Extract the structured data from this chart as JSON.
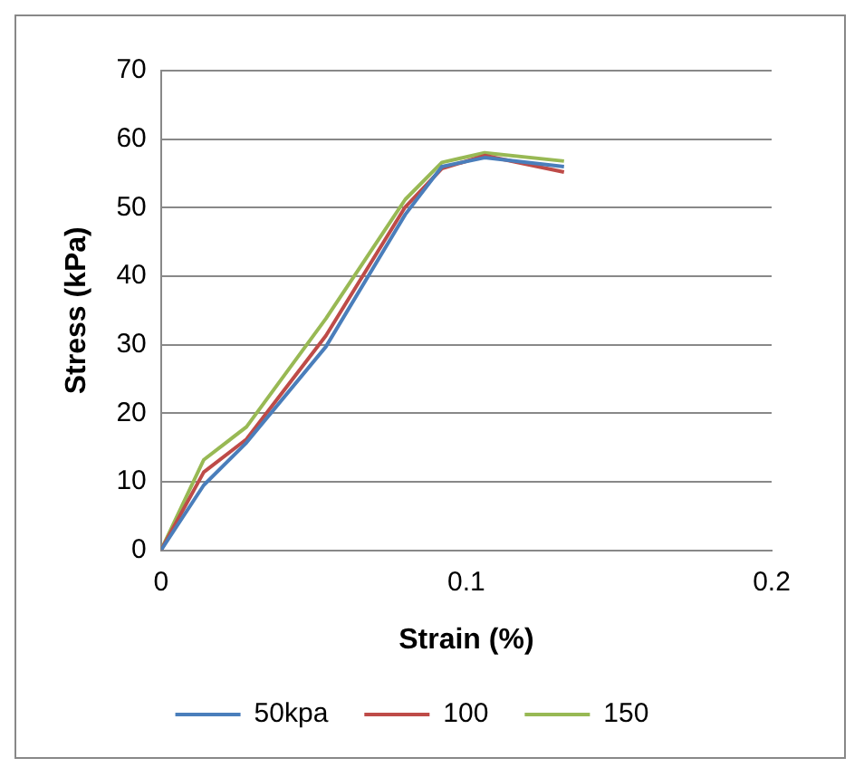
{
  "chart_data": {
    "type": "line",
    "xlabel": "Strain (%)",
    "ylabel": "Stress (kPa)",
    "x": [
      0,
      0.014,
      0.028,
      0.054,
      0.08,
      0.092,
      0.106,
      0.132
    ],
    "series": [
      {
        "name": "50kpa",
        "color": "#4a7ebb",
        "values": [
          0,
          9.5,
          15.7,
          29.7,
          49,
          56,
          57.3,
          56
        ]
      },
      {
        "name": "100",
        "color": "#be4b48",
        "values": [
          0,
          11.4,
          16.2,
          31.3,
          50.1,
          55.7,
          57.6,
          55.2
        ]
      },
      {
        "name": "150",
        "color": "#98b954",
        "values": [
          0,
          13.2,
          18,
          33.8,
          51.2,
          56.6,
          58,
          56.8
        ]
      }
    ],
    "xlim": [
      0,
      0.2
    ],
    "xticks": [
      0,
      0.1,
      0.2
    ],
    "ylim": [
      0,
      70
    ],
    "yticks": [
      0,
      10,
      20,
      30,
      40,
      50,
      60,
      70
    ],
    "grid": "y",
    "legend": "bottom",
    "marker": "none",
    "line_style": "solid"
  }
}
